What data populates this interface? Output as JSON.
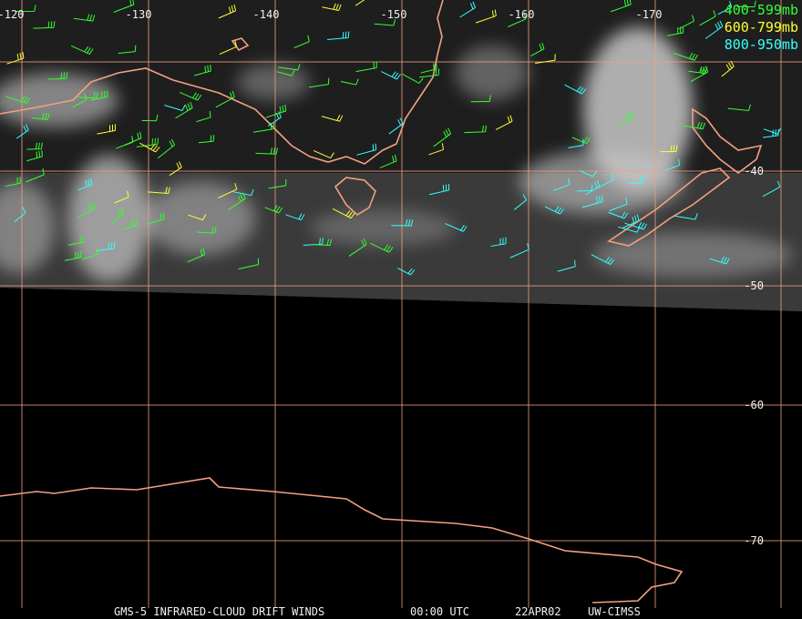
{
  "legend": [
    {
      "label": "400-599mb",
      "color": "#33ff33"
    },
    {
      "label": "600-799mb",
      "color": "#ffff33"
    },
    {
      "label": "800-950mb",
      "color": "#33ffff"
    }
  ],
  "map": {
    "longitude_labels": [
      "-120",
      "-130",
      "-140",
      "-150",
      "-160",
      "-170"
    ],
    "latitude_labels": [
      "-40",
      "-50",
      "-60",
      "-70"
    ]
  },
  "footer": {
    "items": [
      "GMS-5 INFRARED-CLOUD DRIFT WINDS",
      "00:00 UTC",
      "22APR02",
      "UW-CIMSS"
    ]
  }
}
